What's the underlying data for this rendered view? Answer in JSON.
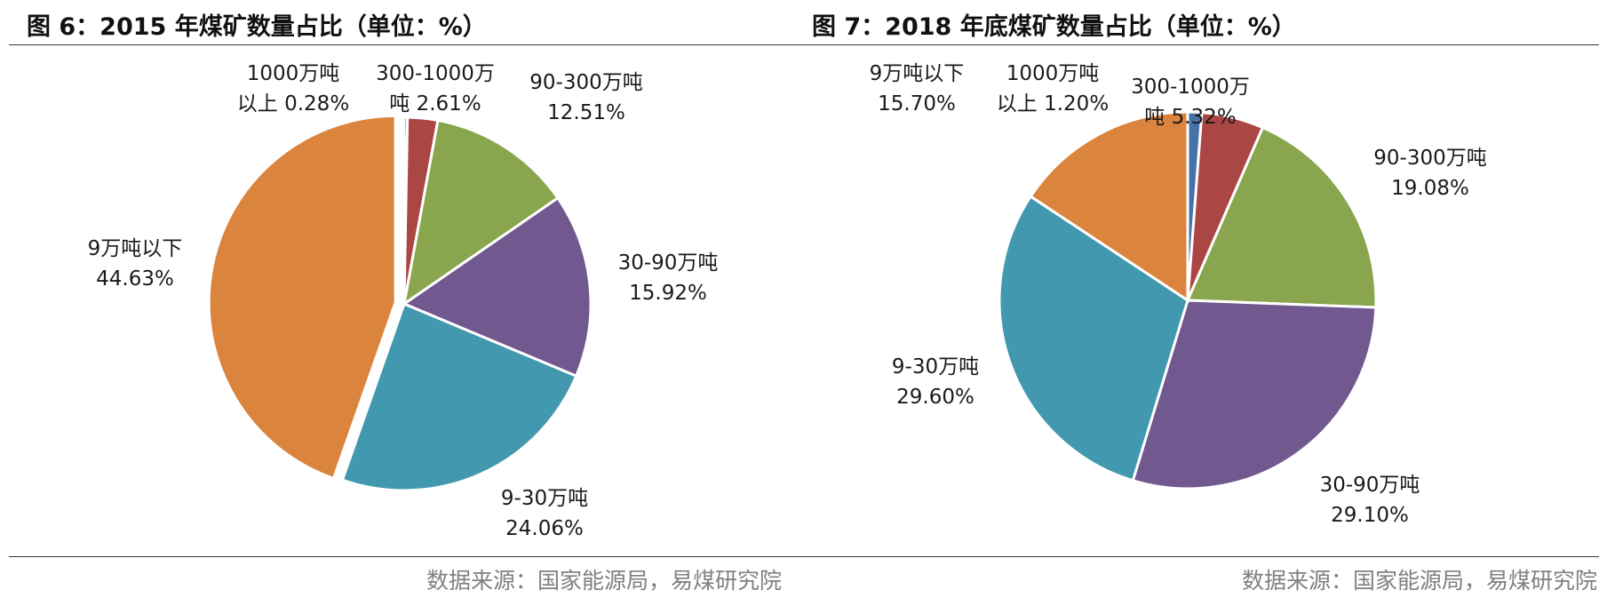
{
  "chart_data": [
    {
      "type": "pie",
      "title": "图 6：2015 年煤矿数量占比（单位：%）",
      "source": "数据来源：国家能源局，易煤研究院",
      "unit": "%",
      "slices": [
        {
          "label": "1000万吨以上",
          "value": 0.28,
          "value_label": "0.28%",
          "color": "#4572A7"
        },
        {
          "label": "300-1000万吨",
          "value": 2.61,
          "value_label": "2.61%",
          "color": "#AA4643"
        },
        {
          "label": "90-300万吨",
          "value": 12.51,
          "value_label": "12.51%",
          "color": "#89A54E"
        },
        {
          "label": "30-90万吨",
          "value": 15.92,
          "value_label": "15.92%",
          "color": "#71588F"
        },
        {
          "label": "9-30万吨",
          "value": 24.06,
          "value_label": "24.06%",
          "color": "#4198AF"
        },
        {
          "label": "9万吨以下",
          "value": 44.63,
          "value_label": "44.63%",
          "color": "#DB843D"
        }
      ]
    },
    {
      "type": "pie",
      "title": "图 7：2018 年底煤矿数量占比（单位：%）",
      "source": "数据来源：国家能源局，易煤研究院",
      "unit": "%",
      "slices": [
        {
          "label": "1000万吨以上",
          "value": 1.2,
          "value_label": "1.20%",
          "color": "#4572A7"
        },
        {
          "label": "300-1000万吨",
          "value": 5.32,
          "value_label": "5.32%",
          "color": "#AA4643"
        },
        {
          "label": "90-300万吨",
          "value": 19.08,
          "value_label": "19.08%",
          "color": "#89A54E"
        },
        {
          "label": "30-90万吨",
          "value": 29.1,
          "value_label": "29.10%",
          "color": "#71588F"
        },
        {
          "label": "9-30万吨",
          "value": 29.6,
          "value_label": "29.60%",
          "color": "#4198AF"
        },
        {
          "label": "9万吨以下",
          "value": 15.7,
          "value_label": "15.70%",
          "color": "#DB843D"
        }
      ]
    }
  ]
}
